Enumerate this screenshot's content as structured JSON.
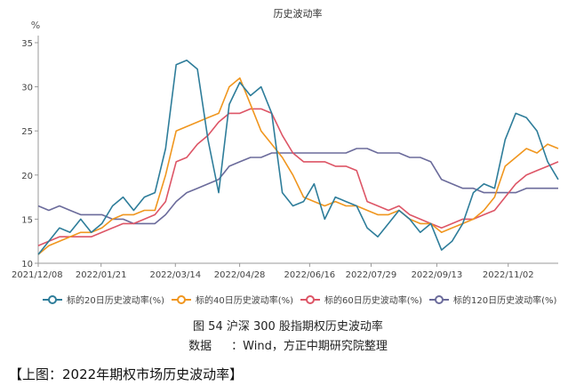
{
  "chart_data": {
    "type": "line",
    "title": "历史波动率",
    "ylabel": "%",
    "ylim": [
      10,
      35
    ],
    "yticks": [
      "10",
      "15",
      "20",
      "25",
      "30",
      "35"
    ],
    "x_tick_labels": [
      "2021/12/08",
      "2022/01/21",
      "2022/03/14",
      "2022/04/28",
      "2022/06/16",
      "2022/07/29",
      "2022/09/13",
      "2022/11/02"
    ],
    "x": [
      "2021/12/08",
      "2021/12/15",
      "2021/12/22",
      "2021/12/29",
      "2022/01/06",
      "2022/01/13",
      "2022/01/21",
      "2022/01/28",
      "2022/02/07",
      "2022/02/14",
      "2022/02/21",
      "2022/02/28",
      "2022/03/07",
      "2022/03/14",
      "2022/03/21",
      "2022/03/28",
      "2022/04/04",
      "2022/04/11",
      "2022/04/18",
      "2022/04/28",
      "2022/05/05",
      "2022/05/12",
      "2022/05/19",
      "2022/05/26",
      "2022/06/02",
      "2022/06/09",
      "2022/06/16",
      "2022/06/23",
      "2022/06/30",
      "2022/07/07",
      "2022/07/14",
      "2022/07/21",
      "2022/07/29",
      "2022/08/05",
      "2022/08/12",
      "2022/08/19",
      "2022/08/26",
      "2022/09/02",
      "2022/09/13",
      "2022/09/20",
      "2022/09/27",
      "2022/10/11",
      "2022/10/18",
      "2022/10/25",
      "2022/11/02",
      "2022/11/09",
      "2022/11/16",
      "2022/11/23",
      "2022/11/30",
      "2022/12/07"
    ],
    "series": [
      {
        "name": "标的20日历史波动率(%)",
        "color": "#2e7d9a",
        "values": [
          11,
          12.5,
          14,
          13.5,
          15,
          13.5,
          14.5,
          16.5,
          17.5,
          16,
          17.5,
          18,
          23,
          32.5,
          33,
          32,
          24,
          18,
          28,
          30.5,
          29,
          30,
          27,
          18,
          16.5,
          17,
          19,
          15,
          17.5,
          17,
          16.5,
          14,
          13,
          14.5,
          16,
          15,
          13.5,
          14.5,
          11.5,
          12.5,
          14.5,
          18,
          19,
          18.5,
          24,
          27,
          26.5,
          25,
          21.5,
          19.5
        ]
      },
      {
        "name": "标的40日历史波动率(%)",
        "color": "#f0961e",
        "values": [
          11,
          12,
          12.5,
          13,
          13.5,
          13.5,
          14,
          15,
          15.5,
          15.5,
          16,
          16,
          20,
          25,
          25.5,
          26,
          26.5,
          27,
          30,
          31,
          28,
          25,
          23.5,
          22,
          20,
          17.5,
          17,
          16.5,
          17,
          16.5,
          16.5,
          16,
          15.5,
          15.5,
          16,
          15,
          14.5,
          14.5,
          13.5,
          14,
          14.5,
          15,
          16,
          17.5,
          21,
          22,
          23,
          22.5,
          23.5,
          23
        ]
      },
      {
        "name": "标的60日历史波动率(%)",
        "color": "#dd5566",
        "values": [
          12,
          12.5,
          13,
          13,
          13,
          13,
          13.5,
          14,
          14.5,
          14.5,
          15,
          15.5,
          17,
          21.5,
          22,
          23.5,
          24.5,
          26,
          27,
          27,
          27.5,
          27.5,
          27,
          24.5,
          22.5,
          21.5,
          21.5,
          21.5,
          21,
          21,
          20.5,
          17,
          16.5,
          16,
          16.5,
          15.5,
          15,
          14.5,
          14,
          14.5,
          15,
          15,
          15.5,
          16,
          17.5,
          19,
          20,
          20.5,
          21,
          21.5
        ]
      },
      {
        "name": "标的120日历史波动率(%)",
        "color": "#6b6b9b",
        "values": [
          16.5,
          16,
          16.5,
          16,
          15.5,
          15.5,
          15.5,
          15,
          15,
          14.5,
          14.5,
          14.5,
          15.5,
          17,
          18,
          18.5,
          19,
          19.5,
          21,
          21.5,
          22,
          22,
          22.5,
          22.5,
          22.5,
          22.5,
          22.5,
          22.5,
          22.5,
          22.5,
          23,
          23,
          22.5,
          22.5,
          22.5,
          22,
          22,
          21.5,
          19.5,
          19,
          18.5,
          18.5,
          18,
          18,
          18,
          18,
          18.5,
          18.5,
          18.5,
          18.5
        ]
      }
    ],
    "legend_position": "bottom",
    "grid": false
  },
  "caption": "图 54 沪深 300 股指期权历史波动率",
  "source_label": "数据",
  "source_text": "：Wind，方正中期研究院整理",
  "page_note": "【上图：2022年期权市场历史波动率】",
  "colors": {
    "axis": "#999999",
    "text": "#444444"
  }
}
